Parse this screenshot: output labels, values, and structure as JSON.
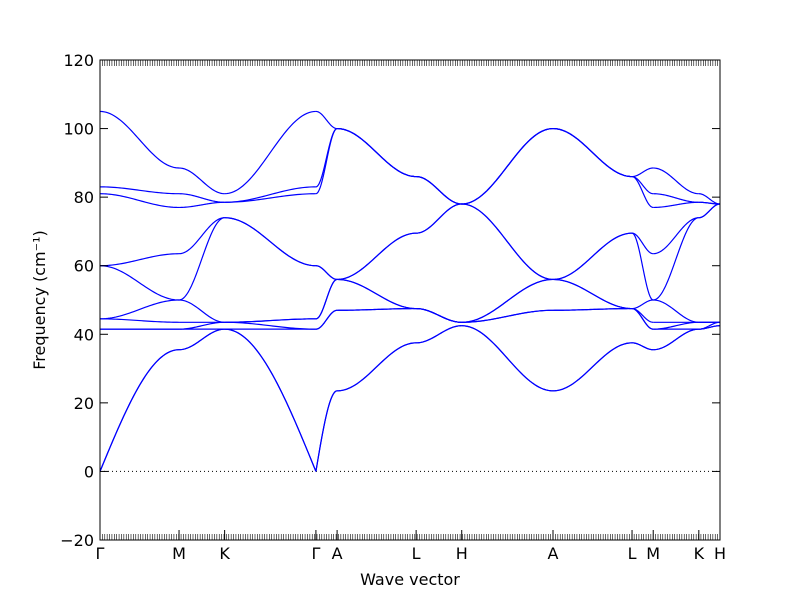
{
  "chart_data": {
    "type": "line",
    "xlabel": "Wave vector",
    "ylabel": "Frequency (cm⁻¹)",
    "ylim": [
      -20,
      120
    ],
    "y_ticks": [
      -20,
      0,
      20,
      40,
      60,
      80,
      100,
      120
    ],
    "x_points": [
      {
        "label": "Γ",
        "x": 0
      },
      {
        "label": "M",
        "x": 1
      },
      {
        "label": "K",
        "x": 1.577
      },
      {
        "label": "Γ",
        "x": 2.732
      },
      {
        "label": "A",
        "x": 3.0
      },
      {
        "label": "L",
        "x": 4.0
      },
      {
        "label": "H",
        "x": 4.577
      },
      {
        "label": "A",
        "x": 5.732
      },
      {
        "label": "L",
        "x": 6.732
      },
      {
        "label": "M",
        "x": 7.0
      },
      {
        "label": "K",
        "x": 7.577
      },
      {
        "label": "H",
        "x": 7.845
      }
    ],
    "segments": [
      {
        "from": 0,
        "to": 1,
        "start": [
          0,
          0,
          41.5,
          41.5,
          44.5,
          44.5,
          60,
          60,
          81,
          83,
          105
        ],
        "end": [
          35.5,
          35.5,
          41.5,
          41.5,
          43.5,
          50,
          50,
          63.5,
          77,
          81,
          88.5
        ]
      },
      {
        "from": 1,
        "to": 2,
        "start": [
          35.5,
          35.5,
          41.5,
          41.5,
          43.5,
          50,
          50,
          63.5,
          77,
          81,
          88.5
        ],
        "end": [
          41.5,
          41.5,
          41.5,
          43.5,
          43.5,
          43.5,
          74,
          74,
          78.5,
          78.5,
          81
        ]
      },
      {
        "from": 2,
        "to": 3,
        "start": [
          41.5,
          41.5,
          41.5,
          43.5,
          43.5,
          43.5,
          74,
          74,
          78.5,
          78.5,
          81
        ],
        "end": [
          0,
          0,
          41.5,
          41.5,
          44.5,
          44.5,
          60,
          60,
          81,
          83,
          105
        ]
      },
      {
        "from": 3,
        "to": 4,
        "start": [
          0,
          0,
          41.5,
          41.5,
          44.5,
          44.5,
          60,
          60,
          81,
          83,
          105
        ],
        "end": [
          23.5,
          23.5,
          47,
          47,
          56,
          56,
          56,
          56,
          100,
          100,
          100
        ]
      },
      {
        "from": 4,
        "to": 5,
        "start": [
          23.5,
          23.5,
          47,
          47,
          56,
          56,
          56,
          56,
          100,
          100,
          100
        ],
        "end": [
          37.5,
          37.5,
          47.5,
          47.5,
          47.5,
          47.5,
          69.5,
          69.5,
          86,
          86,
          86
        ]
      },
      {
        "from": 5,
        "to": 6,
        "start": [
          37.5,
          37.5,
          47.5,
          47.5,
          47.5,
          47.5,
          69.5,
          69.5,
          86,
          86,
          86
        ],
        "end": [
          42.5,
          42.5,
          43.5,
          43.5,
          43.5,
          43.5,
          78,
          78,
          78,
          78,
          78
        ]
      },
      {
        "from": 6,
        "to": 7,
        "start": [
          42.5,
          42.5,
          43.5,
          43.5,
          43.5,
          43.5,
          78,
          78,
          78,
          78,
          78
        ],
        "end": [
          23.5,
          23.5,
          47,
          47,
          56,
          56,
          56,
          56,
          100,
          100,
          100
        ]
      },
      {
        "from": 7,
        "to": 8,
        "start": [
          23.5,
          23.5,
          47,
          47,
          56,
          56,
          56,
          56,
          100,
          100,
          100
        ],
        "end": [
          37.5,
          37.5,
          47.5,
          47.5,
          47.5,
          47.5,
          69.5,
          69.5,
          86,
          86,
          86
        ]
      },
      {
        "from": 8,
        "to": 9,
        "start": [
          37.5,
          37.5,
          47.5,
          47.5,
          47.5,
          47.5,
          69.5,
          69.5,
          86,
          86,
          86
        ],
        "end": [
          35.5,
          35.5,
          41.5,
          41.5,
          43.5,
          50,
          50,
          63.5,
          77,
          81,
          88.5
        ]
      },
      {
        "from": 9,
        "to": 10,
        "start": [
          35.5,
          35.5,
          41.5,
          41.5,
          43.5,
          50,
          50,
          63.5,
          77,
          81,
          88.5
        ],
        "end": [
          41.5,
          41.5,
          41.5,
          43.5,
          43.5,
          43.5,
          74,
          74,
          78.5,
          78.5,
          81
        ]
      },
      {
        "from": 10,
        "to": 11,
        "start": [
          41.5,
          41.5,
          41.5,
          43.5,
          43.5,
          43.5,
          74,
          74,
          78.5,
          78.5,
          81
        ],
        "end": [
          42.5,
          42.5,
          43.5,
          43.5,
          43.5,
          43.5,
          78,
          78,
          78,
          78,
          78
        ]
      }
    ],
    "line_color": "#0000ff",
    "zero_line": {
      "y": 0,
      "style": "dotted"
    },
    "grid": false
  }
}
